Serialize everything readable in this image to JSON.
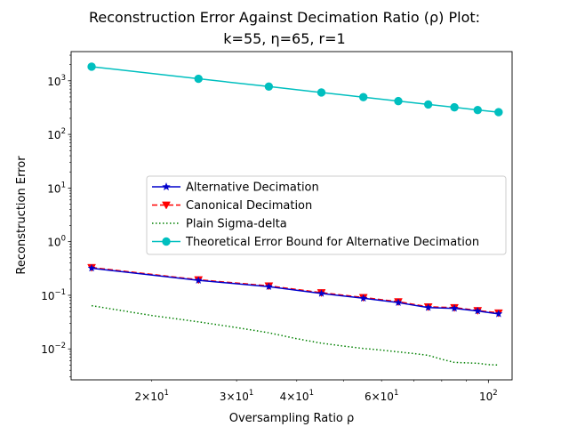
{
  "chart_data": {
    "type": "line",
    "title_line1": "Reconstruction Error Against Decimation Ratio (ρ) Plot:",
    "title_line2": "k=55, η=65, r=1",
    "xlabel": "Oversampling Ratio ρ",
    "ylabel": "Reconstruction Error",
    "xscale": "log",
    "yscale": "log",
    "xlim": [
      13.6,
      112
    ],
    "ylim": [
      0.00265,
      3500
    ],
    "x_major_ticks": [
      {
        "value": 100,
        "base": "10",
        "exp": "2"
      }
    ],
    "x_minor_ticks": [
      {
        "value": 20,
        "mant": "2",
        "base": "10",
        "exp": "1"
      },
      {
        "value": 30,
        "mant": "3",
        "base": "10",
        "exp": "1"
      },
      {
        "value": 40,
        "mant": "4",
        "base": "10",
        "exp": "1"
      },
      {
        "value": 60,
        "mant": "6",
        "base": "10",
        "exp": "1"
      },
      {
        "value": 50,
        "mant": "",
        "base": "",
        "exp": ""
      },
      {
        "value": 70,
        "mant": "",
        "base": "",
        "exp": ""
      },
      {
        "value": 80,
        "mant": "",
        "base": "",
        "exp": ""
      },
      {
        "value": 90,
        "mant": "",
        "base": "",
        "exp": ""
      }
    ],
    "y_major_ticks": [
      {
        "value": 0.01,
        "base": "10",
        "exp": "−2"
      },
      {
        "value": 0.1,
        "base": "10",
        "exp": "−1"
      },
      {
        "value": 1,
        "base": "10",
        "exp": "0"
      },
      {
        "value": 10,
        "base": "10",
        "exp": "1"
      },
      {
        "value": 100,
        "base": "10",
        "exp": "2"
      },
      {
        "value": 1000,
        "base": "10",
        "exp": "3"
      }
    ],
    "legend_position": "center-right",
    "series": [
      {
        "name": "Alternative Decimation",
        "color": "#0000cc",
        "dash": "solid",
        "marker": "star",
        "x": [
          15,
          25,
          35,
          45,
          55,
          65,
          75,
          85,
          95,
          105
        ],
        "y": [
          0.32,
          0.19,
          0.145,
          0.108,
          0.088,
          0.073,
          0.059,
          0.057,
          0.051,
          0.045
        ]
      },
      {
        "name": "Canonical Decimation",
        "color": "#ff0000",
        "dash": "dashed",
        "marker": "triangle_down",
        "x": [
          15,
          25,
          35,
          45,
          55,
          65,
          75,
          85,
          95,
          105
        ],
        "y": [
          0.33,
          0.195,
          0.15,
          0.112,
          0.091,
          0.076,
          0.061,
          0.059,
          0.052,
          0.047
        ]
      },
      {
        "name": "Plain Sigma-delta",
        "color": "#008000",
        "dash": "dotted",
        "marker": "none",
        "x": [
          15,
          20,
          25,
          30,
          35,
          40,
          45,
          50,
          55,
          60,
          65,
          70,
          75,
          80,
          85,
          90,
          95,
          100,
          105
        ],
        "y": [
          0.064,
          0.042,
          0.032,
          0.025,
          0.02,
          0.0155,
          0.0128,
          0.0113,
          0.0102,
          0.0095,
          0.0088,
          0.0082,
          0.0076,
          0.0064,
          0.0056,
          0.0055,
          0.0054,
          0.0051,
          0.005
        ]
      },
      {
        "name": "Theoretical Error Bound for Alternative Decimation",
        "color": "#00bfbf",
        "dash": "solid",
        "marker": "circle",
        "x": [
          15,
          25,
          35,
          45,
          55,
          65,
          75,
          85,
          95,
          105
        ],
        "y": [
          1830,
          1090,
          780,
          605,
          495,
          418,
          362,
          320,
          285,
          260
        ]
      }
    ]
  }
}
